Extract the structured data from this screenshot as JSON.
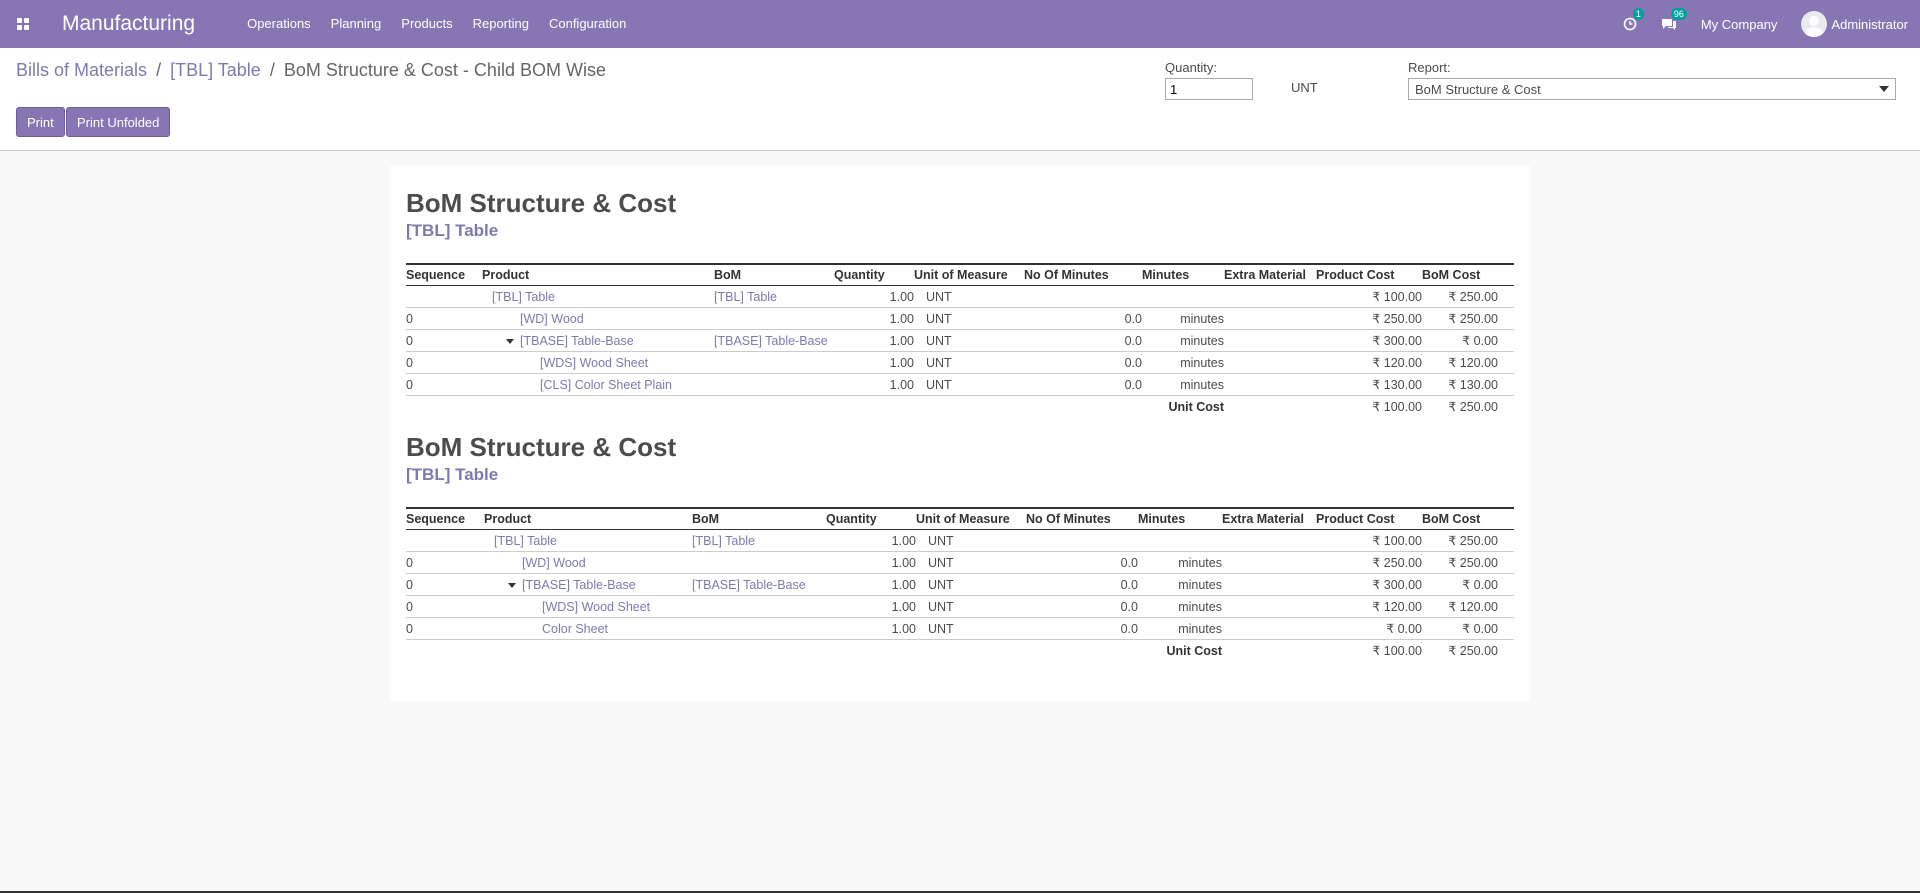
{
  "navbar": {
    "app_name": "Manufacturing",
    "menu": [
      "Operations",
      "Planning",
      "Products",
      "Reporting",
      "Configuration"
    ],
    "activity_badge": "1",
    "messages_badge": "96",
    "company": "My Company",
    "user": "Administrator"
  },
  "breadcrumb": {
    "items": [
      "Bills of Materials",
      "[TBL] Table"
    ],
    "current": "BoM Structure & Cost - Child BOM Wise",
    "sep": "/"
  },
  "buttons": {
    "print": "Print",
    "print_unfolded": "Print Unfolded"
  },
  "controls": {
    "quantity_label": "Quantity:",
    "quantity_value": "1",
    "unit": "UNT",
    "report_label": "Report:",
    "report_value": "BoM Structure & Cost"
  },
  "reports": [
    {
      "title": "BoM Structure & Cost",
      "subtitle": "[TBL] Table",
      "headers": [
        "Sequence",
        "Product",
        "BoM",
        "Quantity",
        "Unit of Measure",
        "No Of Minutes",
        "Minutes",
        "Extra Material",
        "Product Cost",
        "BoM Cost"
      ],
      "rows": [
        {
          "seq": "",
          "product": "[TBL] Table",
          "bom": "[TBL] Table",
          "qty": "1.00",
          "uom": "UNT",
          "no_min": "",
          "minutes": "",
          "extra": "",
          "pcost": "₹ 100.00",
          "bcost": "₹ 250.00"
        },
        {
          "seq": "0",
          "product": "[WD] Wood",
          "bom": "",
          "qty": "1.00",
          "uom": "UNT",
          "no_min": "0.0",
          "minutes": "minutes",
          "extra": "",
          "pcost": "₹ 250.00",
          "bcost": "₹ 250.00"
        },
        {
          "seq": "0",
          "product": "[TBASE] Table-Base",
          "bom": "[TBASE] Table-Base",
          "qty": "1.00",
          "uom": "UNT",
          "no_min": "0.0",
          "minutes": "minutes",
          "extra": "",
          "pcost": "₹ 300.00",
          "bcost": "₹ 0.00"
        },
        {
          "seq": "0",
          "product": "[WDS] Wood Sheet",
          "bom": "",
          "qty": "1.00",
          "uom": "UNT",
          "no_min": "0.0",
          "minutes": "minutes",
          "extra": "",
          "pcost": "₹ 120.00",
          "bcost": "₹ 120.00"
        },
        {
          "seq": "0",
          "product": "[CLS] Color Sheet Plain",
          "bom": "",
          "qty": "1.00",
          "uom": "UNT",
          "no_min": "0.0",
          "minutes": "minutes",
          "extra": "",
          "pcost": "₹ 130.00",
          "bcost": "₹ 130.00"
        }
      ],
      "total": {
        "label": "Unit Cost",
        "pcost": "₹ 100.00",
        "bcost": "₹ 250.00"
      }
    },
    {
      "title": "BoM Structure & Cost",
      "subtitle": "[TBL] Table",
      "headers": [
        "Sequence",
        "Product",
        "BoM",
        "Quantity",
        "Unit of Measure",
        "No Of Minutes",
        "Minutes",
        "Extra Material",
        "Product Cost",
        "BoM Cost"
      ],
      "rows": [
        {
          "seq": "",
          "product": "[TBL] Table",
          "bom": "[TBL] Table",
          "qty": "1.00",
          "uom": "UNT",
          "no_min": "",
          "minutes": "",
          "extra": "",
          "pcost": "₹ 100.00",
          "bcost": "₹ 250.00"
        },
        {
          "seq": "0",
          "product": "[WD] Wood",
          "bom": "",
          "qty": "1.00",
          "uom": "UNT",
          "no_min": "0.0",
          "minutes": "minutes",
          "extra": "",
          "pcost": "₹ 250.00",
          "bcost": "₹ 250.00"
        },
        {
          "seq": "0",
          "product": "[TBASE] Table-Base",
          "bom": "[TBASE] Table-Base",
          "qty": "1.00",
          "uom": "UNT",
          "no_min": "0.0",
          "minutes": "minutes",
          "extra": "",
          "pcost": "₹ 300.00",
          "bcost": "₹ 0.00"
        },
        {
          "seq": "0",
          "product": "[WDS] Wood Sheet",
          "bom": "",
          "qty": "1.00",
          "uom": "UNT",
          "no_min": "0.0",
          "minutes": "minutes",
          "extra": "",
          "pcost": "₹ 120.00",
          "bcost": "₹ 120.00"
        },
        {
          "seq": "0",
          "product": "Color Sheet",
          "bom": "",
          "qty": "1.00",
          "uom": "UNT",
          "no_min": "0.0",
          "minutes": "minutes",
          "extra": "",
          "pcost": "₹ 0.00",
          "bcost": "₹ 0.00"
        }
      ],
      "total": {
        "label": "Unit Cost",
        "pcost": "₹ 100.00",
        "bcost": "₹ 250.00"
      }
    }
  ]
}
